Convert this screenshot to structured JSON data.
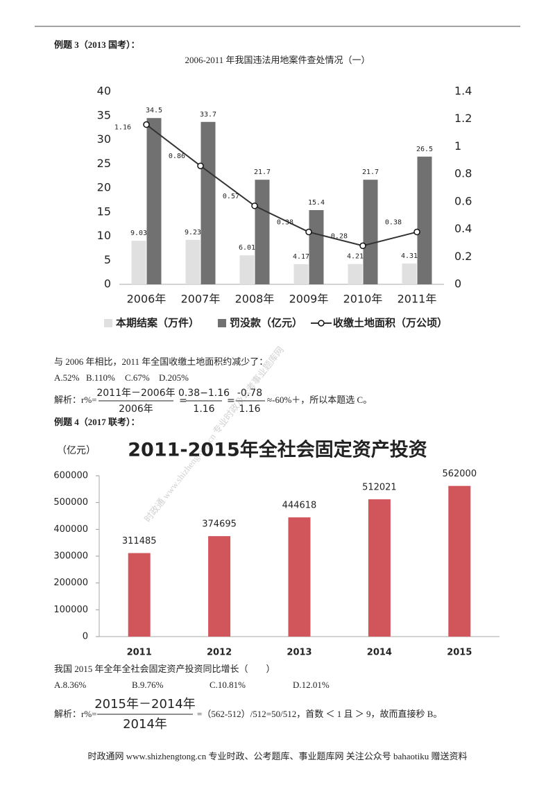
{
  "questions": [
    {
      "heading": "例题 3（2013 国考）：",
      "stem": "与 2006 年相比，2011 年全国收缴土地面积约减少了：",
      "options": [
        "A.52%",
        "B.110%",
        "C.67%",
        "D.205%"
      ],
      "analysis": {
        "prefix": "解析：r%=",
        "fractions": [
          {
            "num": "2011年－2006年",
            "den": "2006年"
          },
          {
            "num": "0.38−1.16",
            "den": "1.16"
          },
          {
            "num": "-0.78",
            "den": "1.16"
          }
        ],
        "equals": "=",
        "suffix": "≈-60%＋，所以本题选 C。"
      }
    },
    {
      "heading": "例题 4（2017 联考）：",
      "stem": "我国 2015 年全年全社会固定资产投资同比增长（　　）",
      "options": [
        "A.8.36%",
        "B.9.76%",
        "C.10.81%",
        "D.12.01%"
      ],
      "analysis": {
        "prefix": "解析：r%=",
        "fractions": [
          {
            "num": "2015年－2014年",
            "den": "2014年"
          }
        ],
        "suffix": "=（562-512）/512=50/512，首数 ＜ 1 且 ＞ 9，故而直接秒 B。"
      }
    }
  ],
  "chart_data": [
    {
      "type": "bar",
      "title": "2006-2011 年我国违法用地案件查处情况（一）",
      "categories": [
        "2006年",
        "2007年",
        "2008年",
        "2009年",
        "2010年",
        "2011年"
      ],
      "series": [
        {
          "name": "本期结案（万件）",
          "color": "#e0e0e0",
          "values": [
            9.03,
            9.23,
            6.01,
            4.17,
            4.21,
            4.31
          ]
        },
        {
          "name": "罚没款（亿元）",
          "color": "#717171",
          "values": [
            34.5,
            33.7,
            21.7,
            15.4,
            21.7,
            26.5
          ]
        },
        {
          "name": "收缴土地面积（万公顷）",
          "color": "#333333",
          "type": "line",
          "axis": "y2",
          "values": [
            1.16,
            0.86,
            0.57,
            0.38,
            0.28,
            0.38
          ]
        }
      ],
      "ylim": [
        0,
        40
      ],
      "yticks": [
        0,
        5,
        10,
        15,
        20,
        25,
        30,
        35,
        40
      ],
      "y2lim": [
        0,
        1.4
      ],
      "y2ticks": [
        0,
        0.2,
        0.4,
        0.6,
        0.8,
        1,
        1.2,
        1.4
      ],
      "legend": "bottom"
    },
    {
      "type": "bar",
      "title": "2011-2015年全社会固定资产投资",
      "y_label": "（亿元）",
      "categories": [
        "2011",
        "2012",
        "2013",
        "2014",
        "2015"
      ],
      "series": [
        {
          "name": "全社会固定资产投资",
          "color": "#d0565c",
          "values": [
            311485,
            374695,
            444618,
            512021,
            562000
          ]
        }
      ],
      "ylim": [
        0,
        600000
      ],
      "yticks": [
        0,
        100000,
        200000,
        300000,
        400000,
        500000,
        600000
      ]
    }
  ],
  "watermark": "时政通 www.shizhengtong.cn 专业时政及公考事业题库网",
  "footer": "时政通网 www.shizhengtong.cn 专业时政、公考题库、事业题库网 关注公众号 bahaotiku 赠送资料"
}
